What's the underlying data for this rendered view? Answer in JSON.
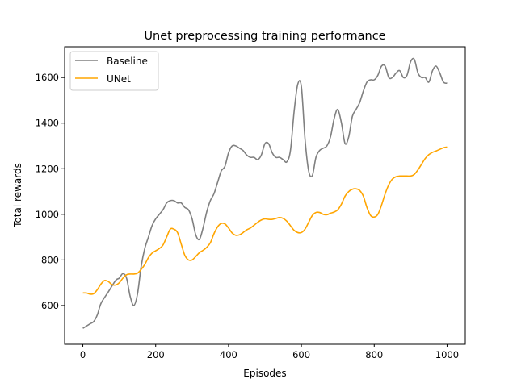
{
  "chart_data": {
    "type": "line",
    "title": "Unet preprocessing training performance",
    "xlabel": "Episodes",
    "ylabel": "Total rewards",
    "xlim": [
      -50,
      1050
    ],
    "ylim": [
      430,
      1735
    ],
    "xticks": [
      0,
      200,
      400,
      600,
      800,
      1000
    ],
    "yticks": [
      600,
      800,
      1000,
      1200,
      1400,
      1600
    ],
    "grid": false,
    "legend": "top-left",
    "series": [
      {
        "name": "Baseline",
        "color": "#808080",
        "points": [
          [
            0,
            500
          ],
          [
            10,
            510
          ],
          [
            20,
            520
          ],
          [
            30,
            530
          ],
          [
            40,
            560
          ],
          [
            50,
            610
          ],
          [
            70,
            660
          ],
          [
            90,
            710
          ],
          [
            100,
            720
          ],
          [
            110,
            740
          ],
          [
            120,
            720
          ],
          [
            130,
            640
          ],
          [
            140,
            600
          ],
          [
            150,
            650
          ],
          [
            160,
            770
          ],
          [
            170,
            850
          ],
          [
            180,
            900
          ],
          [
            190,
            950
          ],
          [
            200,
            980
          ],
          [
            220,
            1020
          ],
          [
            230,
            1050
          ],
          [
            240,
            1060
          ],
          [
            250,
            1060
          ],
          [
            260,
            1050
          ],
          [
            270,
            1050
          ],
          [
            280,
            1030
          ],
          [
            290,
            1020
          ],
          [
            300,
            980
          ],
          [
            310,
            910
          ],
          [
            320,
            890
          ],
          [
            330,
            940
          ],
          [
            340,
            1010
          ],
          [
            350,
            1060
          ],
          [
            360,
            1090
          ],
          [
            370,
            1140
          ],
          [
            380,
            1190
          ],
          [
            390,
            1210
          ],
          [
            400,
            1270
          ],
          [
            410,
            1300
          ],
          [
            420,
            1300
          ],
          [
            430,
            1290
          ],
          [
            440,
            1280
          ],
          [
            450,
            1260
          ],
          [
            460,
            1250
          ],
          [
            470,
            1250
          ],
          [
            480,
            1240
          ],
          [
            490,
            1260
          ],
          [
            500,
            1310
          ],
          [
            510,
            1310
          ],
          [
            520,
            1270
          ],
          [
            530,
            1250
          ],
          [
            540,
            1250
          ],
          [
            550,
            1240
          ],
          [
            560,
            1230
          ],
          [
            570,
            1280
          ],
          [
            580,
            1450
          ],
          [
            590,
            1570
          ],
          [
            600,
            1560
          ],
          [
            610,
            1330
          ],
          [
            620,
            1190
          ],
          [
            630,
            1170
          ],
          [
            640,
            1250
          ],
          [
            650,
            1280
          ],
          [
            660,
            1290
          ],
          [
            670,
            1300
          ],
          [
            680,
            1340
          ],
          [
            690,
            1420
          ],
          [
            700,
            1460
          ],
          [
            710,
            1400
          ],
          [
            720,
            1310
          ],
          [
            730,
            1340
          ],
          [
            740,
            1430
          ],
          [
            750,
            1460
          ],
          [
            760,
            1490
          ],
          [
            770,
            1540
          ],
          [
            780,
            1580
          ],
          [
            790,
            1590
          ],
          [
            800,
            1590
          ],
          [
            810,
            1610
          ],
          [
            820,
            1650
          ],
          [
            830,
            1650
          ],
          [
            840,
            1600
          ],
          [
            850,
            1600
          ],
          [
            860,
            1620
          ],
          [
            870,
            1630
          ],
          [
            880,
            1600
          ],
          [
            890,
            1610
          ],
          [
            900,
            1670
          ],
          [
            910,
            1680
          ],
          [
            920,
            1620
          ],
          [
            930,
            1600
          ],
          [
            940,
            1600
          ],
          [
            950,
            1580
          ],
          [
            960,
            1630
          ],
          [
            970,
            1650
          ],
          [
            980,
            1620
          ],
          [
            990,
            1580
          ],
          [
            1000,
            1575
          ]
        ]
      },
      {
        "name": "UNet",
        "color": "#FFA500",
        "points": [
          [
            0,
            655
          ],
          [
            10,
            655
          ],
          [
            20,
            650
          ],
          [
            30,
            652
          ],
          [
            40,
            670
          ],
          [
            50,
            695
          ],
          [
            60,
            710
          ],
          [
            70,
            705
          ],
          [
            80,
            692
          ],
          [
            90,
            690
          ],
          [
            100,
            700
          ],
          [
            110,
            720
          ],
          [
            120,
            735
          ],
          [
            130,
            738
          ],
          [
            140,
            738
          ],
          [
            150,
            742
          ],
          [
            160,
            758
          ],
          [
            170,
            780
          ],
          [
            180,
            810
          ],
          [
            190,
            830
          ],
          [
            200,
            840
          ],
          [
            210,
            850
          ],
          [
            220,
            865
          ],
          [
            230,
            900
          ],
          [
            240,
            935
          ],
          [
            250,
            935
          ],
          [
            260,
            920
          ],
          [
            270,
            870
          ],
          [
            280,
            820
          ],
          [
            290,
            800
          ],
          [
            300,
            800
          ],
          [
            310,
            815
          ],
          [
            320,
            832
          ],
          [
            330,
            842
          ],
          [
            340,
            855
          ],
          [
            350,
            875
          ],
          [
            360,
            915
          ],
          [
            370,
            945
          ],
          [
            380,
            960
          ],
          [
            390,
            958
          ],
          [
            400,
            940
          ],
          [
            410,
            918
          ],
          [
            420,
            908
          ],
          [
            430,
            910
          ],
          [
            440,
            920
          ],
          [
            450,
            932
          ],
          [
            460,
            940
          ],
          [
            470,
            952
          ],
          [
            480,
            965
          ],
          [
            490,
            975
          ],
          [
            500,
            980
          ],
          [
            510,
            978
          ],
          [
            520,
            978
          ],
          [
            530,
            982
          ],
          [
            540,
            986
          ],
          [
            550,
            982
          ],
          [
            560,
            970
          ],
          [
            570,
            950
          ],
          [
            580,
            930
          ],
          [
            590,
            920
          ],
          [
            600,
            920
          ],
          [
            610,
            935
          ],
          [
            620,
            965
          ],
          [
            630,
            995
          ],
          [
            640,
            1008
          ],
          [
            650,
            1008
          ],
          [
            660,
            1000
          ],
          [
            670,
            998
          ],
          [
            680,
            1005
          ],
          [
            690,
            1010
          ],
          [
            700,
            1020
          ],
          [
            710,
            1045
          ],
          [
            720,
            1080
          ],
          [
            730,
            1100
          ],
          [
            740,
            1110
          ],
          [
            750,
            1112
          ],
          [
            760,
            1105
          ],
          [
            770,
            1080
          ],
          [
            780,
            1030
          ],
          [
            790,
            995
          ],
          [
            800,
            988
          ],
          [
            810,
            1000
          ],
          [
            820,
            1040
          ],
          [
            830,
            1090
          ],
          [
            840,
            1130
          ],
          [
            850,
            1155
          ],
          [
            860,
            1165
          ],
          [
            870,
            1168
          ],
          [
            880,
            1168
          ],
          [
            890,
            1168
          ],
          [
            900,
            1168
          ],
          [
            910,
            1175
          ],
          [
            920,
            1195
          ],
          [
            930,
            1220
          ],
          [
            940,
            1245
          ],
          [
            950,
            1262
          ],
          [
            960,
            1272
          ],
          [
            970,
            1278
          ],
          [
            980,
            1285
          ],
          [
            990,
            1292
          ],
          [
            1000,
            1295
          ]
        ]
      }
    ]
  }
}
